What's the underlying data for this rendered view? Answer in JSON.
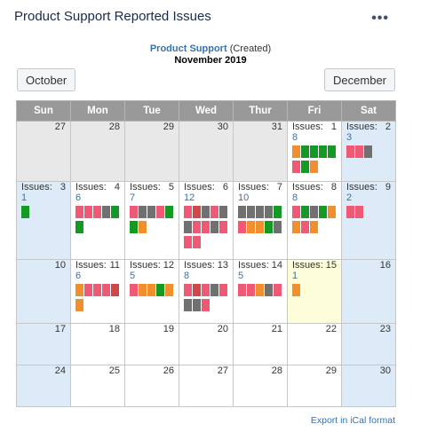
{
  "title": "Product Support Reported Issues",
  "more_label": "•••",
  "subtitle": {
    "link": "Product Support",
    "suffix": "(Created)",
    "month": "November 2019"
  },
  "nav": {
    "prev": "October",
    "next": "December"
  },
  "issues_label": "Issues:",
  "weekdays": [
    "Sun",
    "Mon",
    "Tue",
    "Wed",
    "Thur",
    "Fri",
    "Sat"
  ],
  "colors": {
    "orange": "#f18f2e",
    "red": "#d14646",
    "pink": "#ee5a75",
    "green": "#149a24",
    "gray": "#707070"
  },
  "weeks": [
    [
      {
        "day": "27",
        "type": "other"
      },
      {
        "day": "28",
        "type": "other"
      },
      {
        "day": "29",
        "type": "other"
      },
      {
        "day": "30",
        "type": "other"
      },
      {
        "day": "31",
        "type": "other"
      },
      {
        "day": "1",
        "type": "normal",
        "count": "8",
        "boxes": [
          "orange",
          "green",
          "green",
          "green",
          "green",
          "pink",
          "green",
          "orange"
        ]
      },
      {
        "day": "2",
        "type": "weekend",
        "count": "3",
        "boxes": [
          "pink",
          "pink",
          "gray"
        ]
      }
    ],
    [
      {
        "day": "3",
        "type": "weekend",
        "count": "1",
        "boxes": [
          "green"
        ]
      },
      {
        "day": "4",
        "type": "normal",
        "count": "6",
        "boxes": [
          "pink",
          "pink",
          "pink",
          "gray",
          "green",
          "green"
        ]
      },
      {
        "day": "5",
        "type": "normal",
        "count": "7",
        "boxes": [
          "pink",
          "gray",
          "gray",
          "pink",
          "green",
          "green",
          "orange"
        ]
      },
      {
        "day": "6",
        "type": "normal",
        "count": "12",
        "boxes": [
          "pink",
          "red",
          "gray",
          "pink",
          "gray",
          "gray",
          "pink",
          "pink",
          "gray",
          "pink",
          "pink",
          "pink"
        ]
      },
      {
        "day": "7",
        "type": "normal",
        "count": "10",
        "boxes": [
          "gray",
          "gray",
          "gray",
          "gray",
          "green",
          "pink",
          "orange",
          "orange",
          "green",
          "gray"
        ]
      },
      {
        "day": "8",
        "type": "normal",
        "count": "8",
        "boxes": [
          "pink",
          "green",
          "gray",
          "green",
          "orange",
          "orange",
          "pink",
          "orange"
        ]
      },
      {
        "day": "9",
        "type": "weekend",
        "count": "2",
        "boxes": [
          "pink",
          "pink"
        ]
      }
    ],
    [
      {
        "day": "10",
        "type": "weekend"
      },
      {
        "day": "11",
        "type": "normal",
        "count": "6",
        "boxes": [
          "orange",
          "pink",
          "pink",
          "pink",
          "red",
          "orange"
        ]
      },
      {
        "day": "12",
        "type": "normal",
        "count": "5",
        "boxes": [
          "pink",
          "orange",
          "orange",
          "green",
          "orange"
        ]
      },
      {
        "day": "13",
        "type": "normal",
        "count": "8",
        "boxes": [
          "pink",
          "red",
          "pink",
          "gray",
          "pink",
          "gray",
          "gray",
          "pink"
        ]
      },
      {
        "day": "14",
        "type": "normal",
        "count": "5",
        "boxes": [
          "pink",
          "pink",
          "orange",
          "gray",
          "pink"
        ]
      },
      {
        "day": "15",
        "type": "today",
        "count": "1",
        "boxes": [
          "orange"
        ]
      },
      {
        "day": "16",
        "type": "weekend"
      }
    ],
    [
      {
        "day": "17",
        "type": "weekend"
      },
      {
        "day": "18",
        "type": "normal"
      },
      {
        "day": "19",
        "type": "normal"
      },
      {
        "day": "20",
        "type": "normal"
      },
      {
        "day": "21",
        "type": "normal"
      },
      {
        "day": "22",
        "type": "normal"
      },
      {
        "day": "23",
        "type": "weekend"
      }
    ],
    [
      {
        "day": "24",
        "type": "weekend"
      },
      {
        "day": "25",
        "type": "normal"
      },
      {
        "day": "26",
        "type": "normal"
      },
      {
        "day": "27",
        "type": "normal"
      },
      {
        "day": "28",
        "type": "normal"
      },
      {
        "day": "29",
        "type": "normal"
      },
      {
        "day": "30",
        "type": "weekend"
      }
    ]
  ],
  "export_label": "Export in iCal format"
}
